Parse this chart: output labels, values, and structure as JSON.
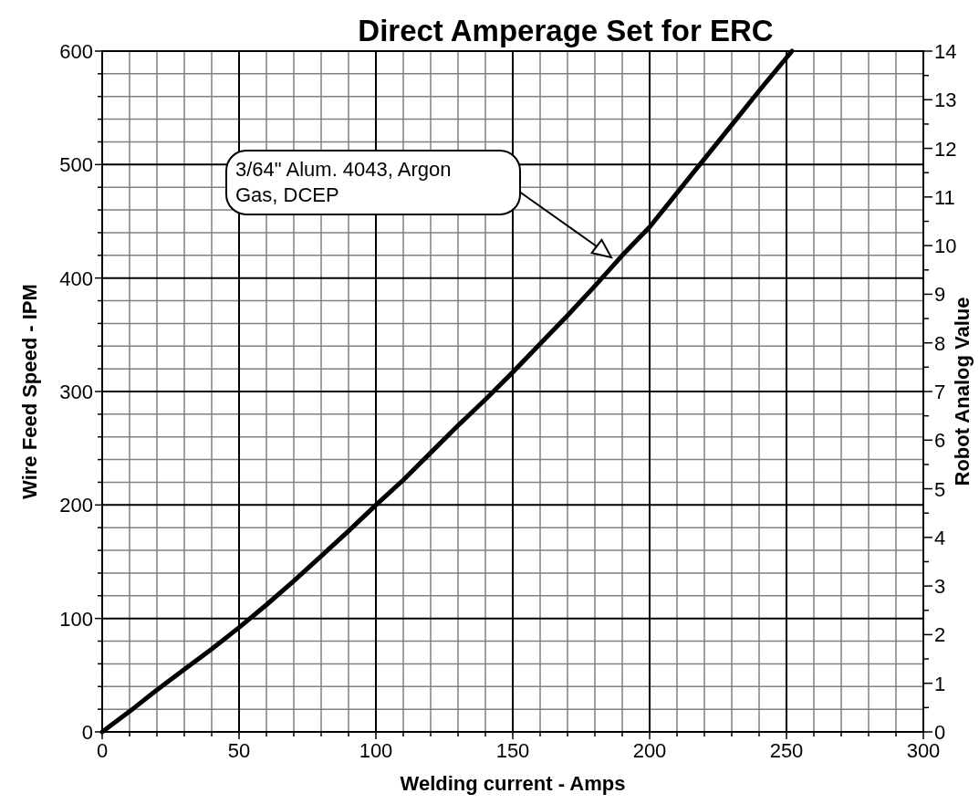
{
  "chart_data": {
    "type": "line",
    "title": "Direct Amperage Set for ERC",
    "xlabel": "Welding current - Amps",
    "ylabel": "Wire Feed Speed - IPM",
    "y2label": "Robot Analog Value",
    "xlim": [
      0,
      300
    ],
    "ylim": [
      0,
      600
    ],
    "y2lim": [
      0,
      14
    ],
    "xticks": [
      0,
      {
        "value": 10,
        "label": null
      },
      {
        "value": 20,
        "label": null
      },
      {
        "value": 30,
        "label": null
      },
      {
        "value": 40,
        "label": null
      },
      50,
      {
        "value": 60,
        "label": null
      },
      {
        "value": 70,
        "label": null
      },
      {
        "value": 80,
        "label": null
      },
      {
        "value": 90,
        "label": null
      },
      100,
      {
        "value": 110,
        "label": null
      },
      {
        "value": 120,
        "label": null
      },
      {
        "value": 130,
        "label": null
      },
      {
        "value": 140,
        "label": null
      },
      150,
      {
        "value": 160,
        "label": null
      },
      {
        "value": 170,
        "label": null
      },
      {
        "value": 180,
        "label": null
      },
      {
        "value": 190,
        "label": null
      },
      200,
      {
        "value": 210,
        "label": null
      },
      {
        "value": 220,
        "label": null
      },
      {
        "value": 230,
        "label": null
      },
      {
        "value": 240,
        "label": null
      },
      250,
      {
        "value": 260,
        "label": null
      },
      {
        "value": 270,
        "label": null
      },
      {
        "value": 280,
        "label": null
      },
      {
        "value": 290,
        "label": null
      },
      300
    ],
    "yticks": [
      0,
      {
        "value": 20,
        "label": null
      },
      {
        "value": 40,
        "label": null
      },
      {
        "value": 60,
        "label": null
      },
      {
        "value": 80,
        "label": null
      },
      100,
      {
        "value": 120,
        "label": null
      },
      {
        "value": 140,
        "label": null
      },
      {
        "value": 160,
        "label": null
      },
      {
        "value": 180,
        "label": null
      },
      200,
      {
        "value": 220,
        "label": null
      },
      {
        "value": 240,
        "label": null
      },
      {
        "value": 260,
        "label": null
      },
      {
        "value": 280,
        "label": null
      },
      300,
      {
        "value": 320,
        "label": null
      },
      {
        "value": 340,
        "label": null
      },
      {
        "value": 360,
        "label": null
      },
      {
        "value": 380,
        "label": null
      },
      400,
      {
        "value": 420,
        "label": null
      },
      {
        "value": 440,
        "label": null
      },
      {
        "value": 460,
        "label": null
      },
      {
        "value": 480,
        "label": null
      },
      500,
      {
        "value": 520,
        "label": null
      },
      {
        "value": 540,
        "label": null
      },
      {
        "value": 560,
        "label": null
      },
      {
        "value": 580,
        "label": null
      },
      600
    ],
    "y2ticks": [
      0,
      {
        "value": 0.5,
        "label": null
      },
      1,
      {
        "value": 1.5,
        "label": null
      },
      2,
      {
        "value": 2.5,
        "label": null
      },
      3,
      {
        "value": 3.5,
        "label": null
      },
      4,
      {
        "value": 4.5,
        "label": null
      },
      5,
      {
        "value": 5.5,
        "label": null
      },
      6,
      {
        "value": 6.5,
        "label": null
      },
      7,
      {
        "value": 7.5,
        "label": null
      },
      8,
      {
        "value": 8.5,
        "label": null
      },
      9,
      {
        "value": 9.5,
        "label": null
      },
      10,
      {
        "value": 10.5,
        "label": null
      },
      11,
      {
        "value": 11.5,
        "label": null
      },
      12,
      {
        "value": 12.5,
        "label": null
      },
      13,
      {
        "value": 13.5,
        "label": null
      },
      14
    ],
    "grid": true,
    "marker": "none",
    "line_style": "solid",
    "annotations": [
      "3/64\" Alum. 4043, Argon Gas, DCEP"
    ],
    "series": [
      {
        "color": "#000000",
        "x": [
          0,
          10,
          20,
          30,
          40,
          50,
          60,
          70,
          80,
          90,
          100,
          110,
          120,
          130,
          140,
          150,
          160,
          170,
          180,
          190,
          200,
          210,
          220,
          230,
          240,
          252
        ],
        "values": [
          0,
          18,
          37,
          55,
          73,
          92,
          112,
          133,
          155,
          177,
          200,
          222,
          246,
          270,
          293,
          317,
          342,
          367,
          393,
          420,
          445,
          475,
          505,
          535,
          565,
          600
        ]
      }
    ]
  }
}
